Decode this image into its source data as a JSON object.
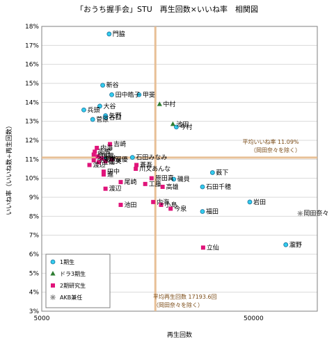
{
  "chart_data": {
    "type": "scatter",
    "title": "「おうち握手会」STU　再生回数×いいね率　相関図",
    "xlabel": "再生回数",
    "ylabel": "いいね率（いいね数÷再生回数）",
    "x_scale": "log",
    "xlim": [
      5000,
      100000
    ],
    "ylim": [
      3,
      18
    ],
    "x_ticks": [
      {
        "value": 5000,
        "label": "5000"
      },
      {
        "value": 50000,
        "label": "50000"
      }
    ],
    "y_ticks": [
      "3%",
      "4%",
      "5%",
      "6%",
      "7%",
      "8%",
      "9%",
      "10%",
      "11%",
      "12%",
      "13%",
      "14%",
      "15%",
      "16%",
      "17%",
      "18%"
    ],
    "grid": "y-major",
    "legend_position": "bottom-left",
    "reference_lines": {
      "avg_like_rate": {
        "y": 11.09,
        "label": "平均いいね率 11.09%",
        "sublabel": "（岡田奈々を除く）"
      },
      "avg_views": {
        "x": 17193.6,
        "label": "平均再生回数 17193.6回",
        "sublabel": "（岡田奈々を除く）"
      }
    },
    "series": [
      {
        "name": "1期生",
        "color": "#33ccee",
        "marker": "circle",
        "points": [
          {
            "label": "門脇",
            "x": 10400,
            "y": 17.6
          },
          {
            "label": "新谷",
            "x": 9700,
            "y": 14.9
          },
          {
            "label": "田中皓子",
            "x": 10700,
            "y": 14.4
          },
          {
            "label": "甲斐",
            "x": 14400,
            "y": 14.4
          },
          {
            "label": "大谷",
            "x": 9400,
            "y": 13.8
          },
          {
            "label": "兵頭",
            "x": 7900,
            "y": 13.6
          },
          {
            "label": "矢野",
            "x": 10000,
            "y": 13.3
          },
          {
            "label": "谷口",
            "x": 10000,
            "y": 13.2
          },
          {
            "label": "菅原",
            "x": 8700,
            "y": 13.1
          },
          {
            "label": "今村",
            "x": 21600,
            "y": 12.7
          },
          {
            "label": "石田みなみ",
            "x": 13400,
            "y": 11.1
          },
          {
            "label": "沖",
            "x": 9900,
            "y": 11.0
          },
          {
            "label": "薮下",
            "x": 32000,
            "y": 10.3
          },
          {
            "label": "磯貝",
            "x": 21000,
            "y": 9.95
          },
          {
            "label": "石田千穂",
            "x": 28700,
            "y": 9.55
          },
          {
            "label": "岩田",
            "x": 48000,
            "y": 8.75
          },
          {
            "label": "福田",
            "x": 28700,
            "y": 8.25
          },
          {
            "label": "瀧野",
            "x": 71000,
            "y": 6.5
          }
        ]
      },
      {
        "name": "ドラ3期生",
        "color": "#2e7d32",
        "marker": "triangle",
        "points": [
          {
            "label": "中村",
            "x": 18000,
            "y": 13.9
          },
          {
            "label": "池田",
            "x": 20800,
            "y": 12.85
          }
        ]
      },
      {
        "name": "2期研究生",
        "color": "#e0147a",
        "marker": "square",
        "points": [
          {
            "label": "吉崎",
            "x": 10500,
            "y": 11.8
          },
          {
            "label": "内海",
            "x": 9100,
            "y": 11.6
          },
          {
            "label": "宗雪",
            "x": 8900,
            "y": 11.4
          },
          {
            "label": "原田",
            "x": 8800,
            "y": 11.25
          },
          {
            "label": "信濃",
            "x": 9200,
            "y": 11.15
          },
          {
            "label": "鈴木",
            "x": 9600,
            "y": 11.05
          },
          {
            "label": "今泉",
            "x": 8800,
            "y": 10.95
          },
          {
            "label": "深優",
            "x": 10700,
            "y": 11.0
          },
          {
            "label": "里美",
            "x": 10000,
            "y": 10.9
          },
          {
            "label": "立仙",
            "x": 9300,
            "y": 10.85
          },
          {
            "label": "渡辺",
            "x": 8400,
            "y": 10.7
          },
          {
            "label": "蒼吾",
            "x": 14000,
            "y": 10.7
          },
          {
            "label": "川又あんな",
            "x": 13900,
            "y": 10.5
          },
          {
            "label": "田中",
            "x": 9800,
            "y": 10.35
          },
          {
            "label": "進",
            "x": 9800,
            "y": 10.2
          },
          {
            "label": "原田真",
            "x": 16500,
            "y": 10.0
          },
          {
            "label": "尾崎",
            "x": 11800,
            "y": 9.8
          },
          {
            "label": "工藤",
            "x": 15400,
            "y": 9.7
          },
          {
            "label": "渡辺",
            "x": 10000,
            "y": 9.45
          },
          {
            "label": "高雄",
            "x": 18600,
            "y": 9.55
          },
          {
            "label": "池田",
            "x": 11800,
            "y": 8.6
          },
          {
            "label": "内海",
            "x": 16800,
            "y": 8.75
          },
          {
            "label": "小島",
            "x": 18300,
            "y": 8.6
          },
          {
            "label": "今泉",
            "x": 20300,
            "y": 8.4
          },
          {
            "label": "立仙",
            "x": 28900,
            "y": 6.35
          }
        ]
      },
      {
        "name": "AKB兼任",
        "color": "#888888",
        "marker": "asterisk",
        "points": [
          {
            "label": "岡田奈々",
            "x": 83000,
            "y": 8.15
          }
        ]
      }
    ]
  }
}
